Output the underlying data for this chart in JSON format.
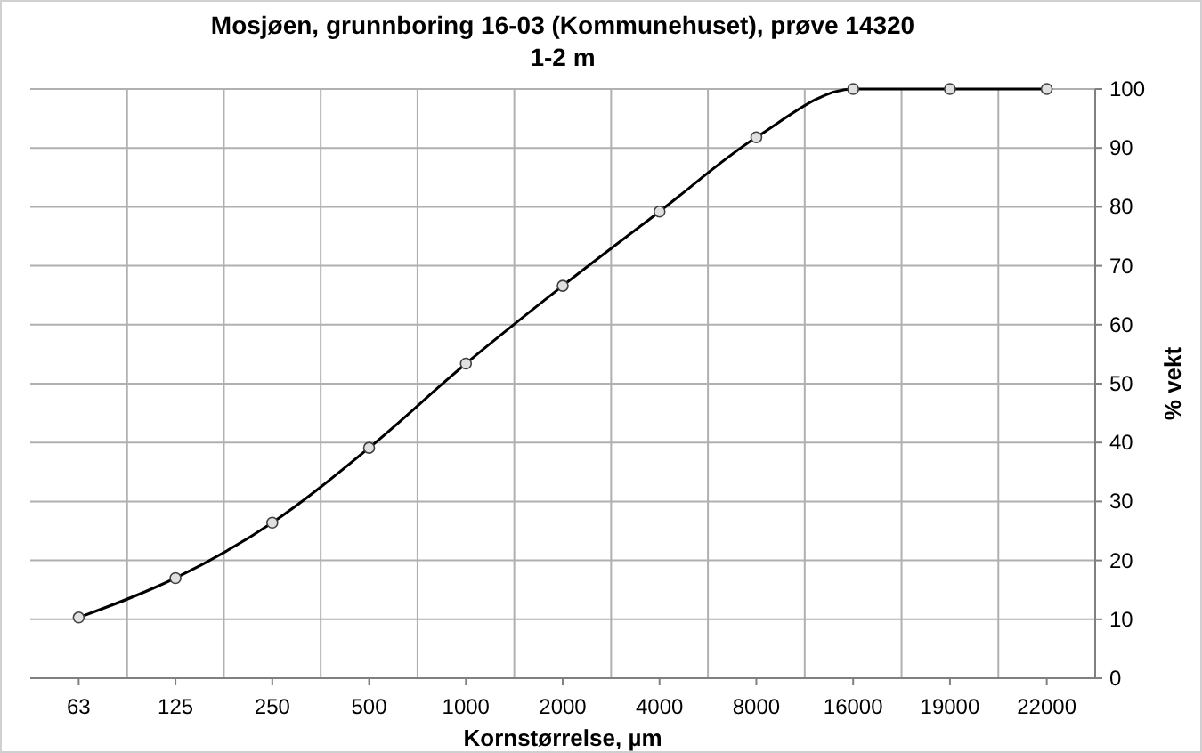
{
  "chart_data": {
    "type": "line",
    "title": "Mosjøen, grunnboring 16-03 (Kommunehuset), prøve 14320",
    "subtitle": "1-2 m",
    "xlabel": "Kornstørrelse, µm",
    "ylabel": "% vekt",
    "categories": [
      "63",
      "125",
      "250",
      "500",
      "1000",
      "2000",
      "4000",
      "8000",
      "16000",
      "19000",
      "22000"
    ],
    "series": [
      {
        "color": "#000000",
        "values": [
          10.3,
          17,
          26.4,
          39.1,
          53.4,
          66.6,
          79.2,
          91.8,
          100,
          100,
          100
        ]
      }
    ],
    "ylim": [
      0,
      100
    ],
    "yticks": [
      0,
      10,
      20,
      30,
      40,
      50,
      60,
      70,
      80,
      90,
      100
    ],
    "grid": true,
    "marker": "circle"
  }
}
